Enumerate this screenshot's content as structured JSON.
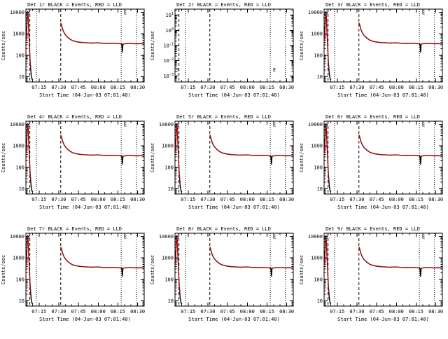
{
  "window": {
    "background": "#ffffff"
  },
  "chart_data": {
    "type": "line",
    "grid": {
      "rows": 3,
      "cols": 3
    },
    "xlabel": "Start Time (04-Jun-03 07:01:40)",
    "ylabel": "Counts/sec",
    "x_axis": {
      "range": [
        0,
        90
      ],
      "tick_pos": [
        10,
        25,
        40,
        55,
        70,
        85
      ],
      "tick_labels": [
        "07:15",
        "07:30",
        "07:45",
        "08:00",
        "08:15",
        "08:30"
      ],
      "minor_step": 5
    },
    "y_axis_data": {
      "scale": "log",
      "log_range": [
        0.75,
        4.15
      ],
      "tick_logs": [
        1,
        2,
        3,
        4
      ],
      "tick_labels": [
        "10",
        "100",
        "1000",
        "10000"
      ]
    },
    "y_axis_empty": {
      "scale": "log",
      "log_range": [
        -3.4,
        1.4
      ],
      "tick_logs": [
        1,
        0,
        -1,
        -2,
        -3
      ],
      "tick_base": "10",
      "tick_exponents": [
        "1",
        "0",
        "-1",
        "-2",
        "-3"
      ]
    },
    "vlines": {
      "dashed_x": [
        3,
        26.5
      ],
      "dotted_x": [
        8,
        72.5,
        84
      ]
    },
    "annotations": {
      "start_label": "S",
      "end_label": "E",
      "start_x": 0.8,
      "end_x": 74.5,
      "label_log_y_data": 3.9,
      "label_log_y_empty": -2.7
    },
    "panels": [
      {
        "title": "Det 1r BLACK = Events, RED = LLD",
        "has_data": true
      },
      {
        "title": "Det 2r BLACK = Events, RED = LLD",
        "has_data": false
      },
      {
        "title": "Det 3r BLACK = Events, RED = LLD",
        "has_data": true
      },
      {
        "title": "Det 4r BLACK = Events, RED = LLD",
        "has_data": true
      },
      {
        "title": "Det 5r BLACK = Events, RED = LLD",
        "has_data": true
      },
      {
        "title": "Det 6r BLACK = Events, RED = LLD",
        "has_data": true
      },
      {
        "title": "Det 7r BLACK = Events, RED = LLD",
        "has_data": true
      },
      {
        "title": "Det 8r BLACK = Events, RED = LLD",
        "has_data": true
      },
      {
        "title": "Det 9r BLACK = Events, RED = LLD",
        "has_data": true
      }
    ],
    "series": {
      "events": {
        "name": "Events",
        "color": "#000000",
        "segments": [
          {
            "x": [
              0.3,
              0.8,
              1.3,
              1.8,
              2.2,
              2.7,
              3.1,
              3.6,
              4.0,
              4.4,
              4.8,
              5.2
            ],
            "y": [
              500,
              2500,
              10500,
              6000,
              1200,
              260,
              70,
              24,
              13,
              9,
              7.5,
              7
            ]
          },
          {
            "x": [
              26.5,
              27,
              27.5,
              28,
              28.7,
              29.5,
              30.5,
              31.5,
              33,
              34.5,
              36,
              38,
              40,
              42,
              44,
              46,
              48,
              50,
              52,
              54,
              56,
              58,
              60,
              62,
              64,
              66,
              68,
              70,
              71.5,
              72.5,
              73,
              73.4,
              73.8,
              74.5,
              76,
              78,
              80,
              82,
              84,
              86,
              88,
              89.5
            ],
            "y": [
              3200,
              2700,
              2100,
              1600,
              1250,
              1000,
              830,
              710,
              590,
              515,
              468,
              432,
              412,
              396,
              386,
              380,
              373,
              368,
              373,
              379,
              371,
              361,
              355,
              352,
              357,
              361,
              356,
              349,
              343,
              338,
              300,
              140,
              320,
              338,
              343,
              347,
              351,
              345,
              341,
              346,
              343,
              341
            ]
          }
        ]
      },
      "lld": {
        "name": "LLD",
        "color": "#dd0000",
        "segments": [
          {
            "x": [
              0.3,
              0.8,
              1.3,
              1.8,
              2.2,
              2.7,
              3.1,
              3.6,
              4.0
            ],
            "y": [
              480,
              2400,
              10000,
              5800,
              1150,
              250,
              68,
              30,
              19
            ]
          },
          {
            "x": [
              26.5,
              27,
              27.5,
              28,
              28.7,
              29.5,
              30.5,
              31.5,
              33,
              34.5,
              36,
              38,
              40,
              42,
              44,
              46,
              48,
              50,
              52,
              54,
              56,
              58,
              60,
              62,
              64,
              66,
              68,
              70,
              71.5,
              72.5,
              73,
              73.4,
              73.8,
              74.5,
              76,
              78,
              80,
              82,
              84,
              86,
              88,
              89.5
            ],
            "y": [
              3250,
              2750,
              2140,
              1630,
              1270,
              1020,
              845,
              722,
              598,
              522,
              473,
              436,
              415,
              399,
              389,
              383,
              376,
              371,
              376,
              382,
              374,
              364,
              358,
              355,
              360,
              364,
              359,
              352,
              346,
              341,
              334,
              330,
              333,
              341,
              346,
              350,
              354,
              348,
              344,
              349,
              346,
              344
            ]
          }
        ]
      }
    }
  }
}
